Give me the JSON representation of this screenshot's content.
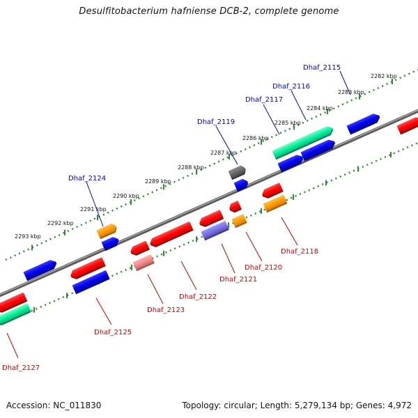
{
  "title": "Desulfitobacterium hafniense DCB-2, complete genome",
  "footer": {
    "accession": "Accession: NC_011830",
    "info": "Topology: circular; Length: 5,279,134 bp; Genes: 4,972"
  },
  "colors": {
    "forward_label": "#0000cc",
    "reverse_label": "#cc0000",
    "backbone": "#808080",
    "scale_dots": "#2e8b2e"
  },
  "scale_labels": [
    "2282 kbp",
    "2283 kbp",
    "2284 kbp",
    "2285 kbp",
    "2286 kbp",
    "2287 kbp",
    "2288 kbp",
    "2289 kbp",
    "2290 kbp",
    "2291 kbp",
    "2292 kbp",
    "2293 kbp"
  ],
  "forward_labels": [
    "Dhaf_2115",
    "Dhaf_2116",
    "Dhaf_2117",
    "Dhaf_2119",
    "Dhaf_2124"
  ],
  "reverse_labels": [
    "Dhaf_2118",
    "Dhaf_2120",
    "Dhaf_2121",
    "Dhaf_2122",
    "Dhaf_2123",
    "Dhaf_2125",
    "Dhaf_2127"
  ]
}
